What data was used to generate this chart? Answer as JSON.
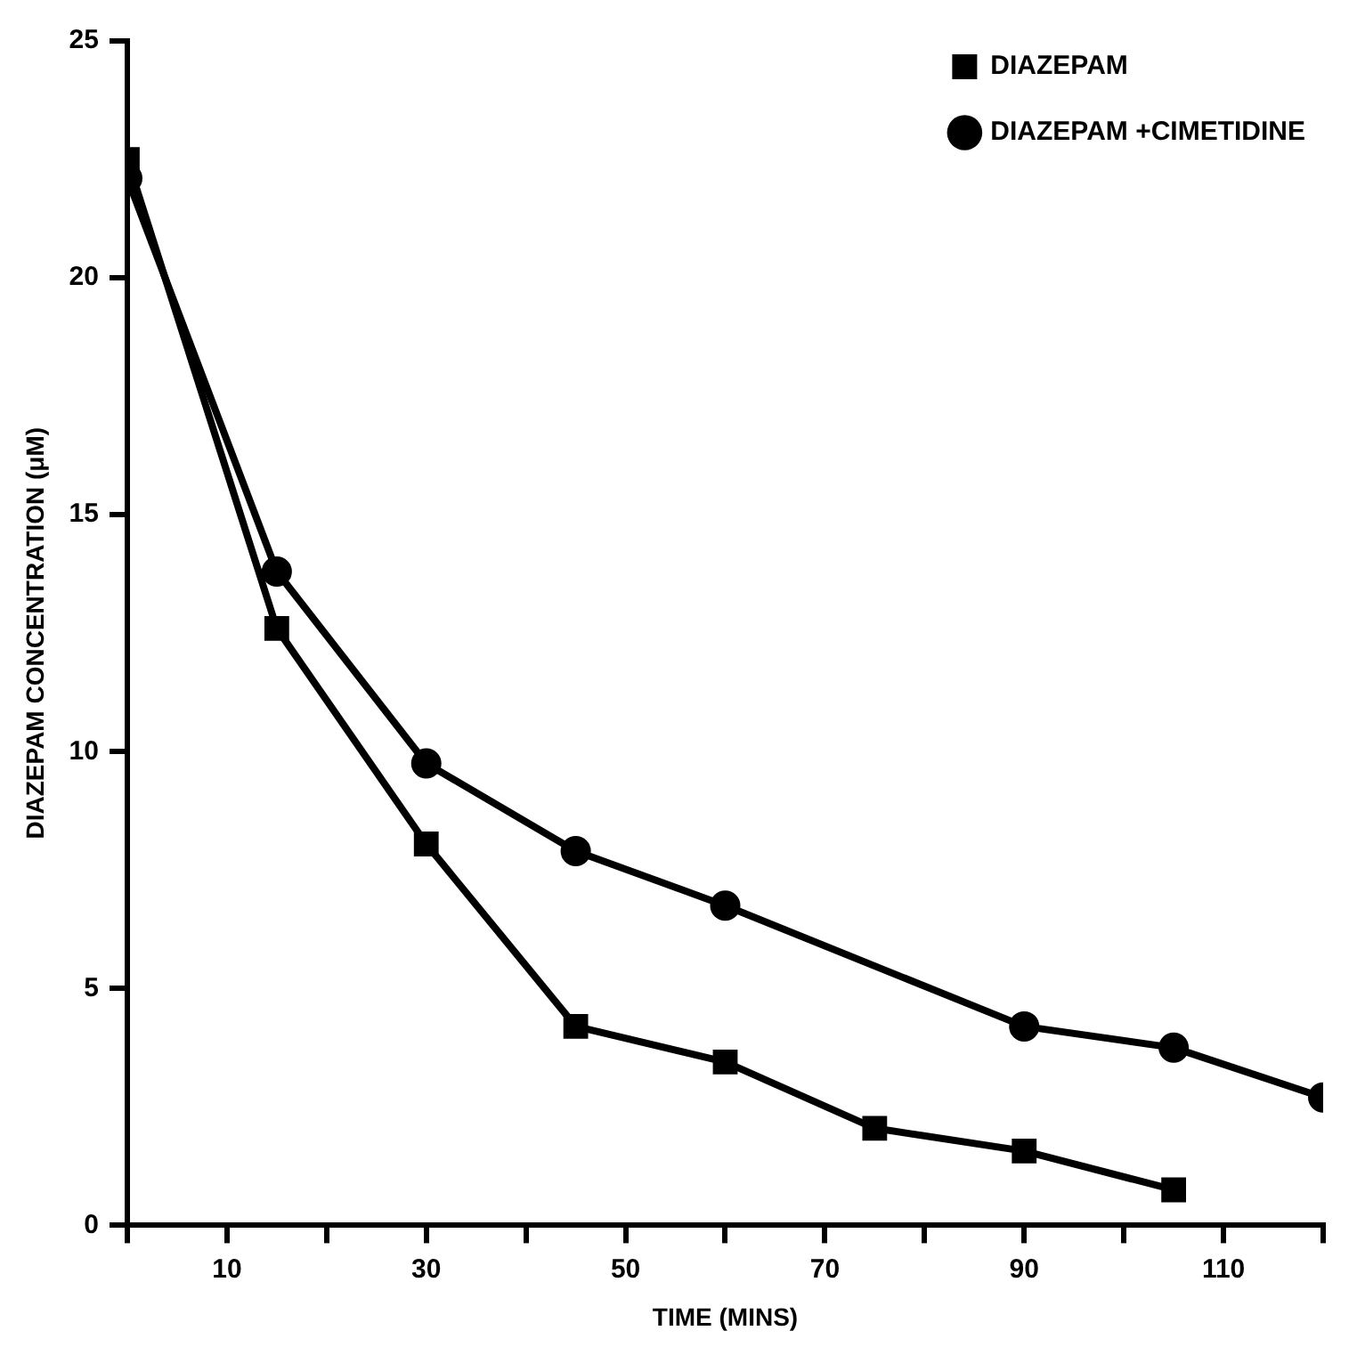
{
  "chart_data": {
    "type": "line",
    "xlabel": "TIME (MINS)",
    "ylabel": "DIAZEPAM CONCENTRATION (μM)",
    "xlim": [
      0,
      120
    ],
    "xticks": [
      {
        "value": 0,
        "label": null
      },
      10,
      {
        "value": 20,
        "label": null
      },
      30,
      {
        "value": 40,
        "label": null
      },
      50,
      {
        "value": 60,
        "label": null
      },
      70,
      {
        "value": 80,
        "label": null
      },
      90,
      {
        "value": 100,
        "label": null
      },
      110,
      {
        "value": 120,
        "label": null
      }
    ],
    "ylim": [
      0,
      25
    ],
    "yticks": [
      0,
      5,
      10,
      15,
      20,
      25
    ],
    "grid": false,
    "legend": "top right",
    "line_style": "solid",
    "series": [
      {
        "name": "DIAZEPAM",
        "color": "#000000",
        "marker": "square",
        "x": [
          0,
          15,
          30,
          45,
          60,
          75,
          90,
          105
        ],
        "values": [
          22.5,
          12.6,
          8.05,
          4.2,
          3.45,
          2.05,
          1.57,
          0.75
        ]
      },
      {
        "name": "DIAZEPAM +CIMETIDINE",
        "color": "#000000",
        "marker": "circle",
        "x": [
          0,
          15,
          30,
          45,
          60,
          90,
          105,
          120
        ],
        "values": [
          22.1,
          13.8,
          9.75,
          7.9,
          6.75,
          4.2,
          3.75,
          2.7
        ]
      }
    ]
  }
}
